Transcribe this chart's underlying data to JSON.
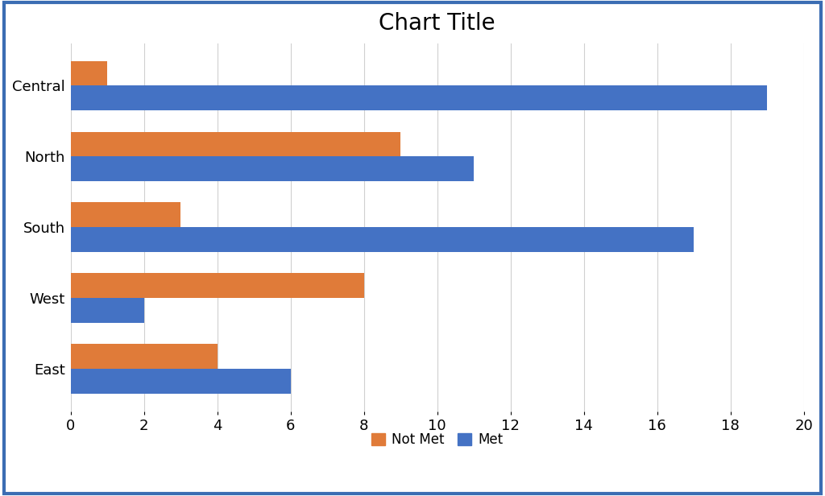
{
  "title": "Chart Title",
  "categories": [
    "East",
    "West",
    "South",
    "North",
    "Central"
  ],
  "not_met": [
    4,
    8,
    3,
    9,
    1
  ],
  "met": [
    6,
    2,
    17,
    11,
    19
  ],
  "not_met_color": "#E07B39",
  "met_color": "#4472C4",
  "xlim": [
    0,
    20
  ],
  "xticks": [
    0,
    2,
    4,
    6,
    8,
    10,
    12,
    14,
    16,
    18,
    20
  ],
  "title_fontsize": 20,
  "tick_fontsize": 13,
  "legend_fontsize": 12,
  "bar_height": 0.35,
  "background_color": "#FFFFFF",
  "grid_color": "#D0D0D0",
  "border_color": "#3B6DB3"
}
